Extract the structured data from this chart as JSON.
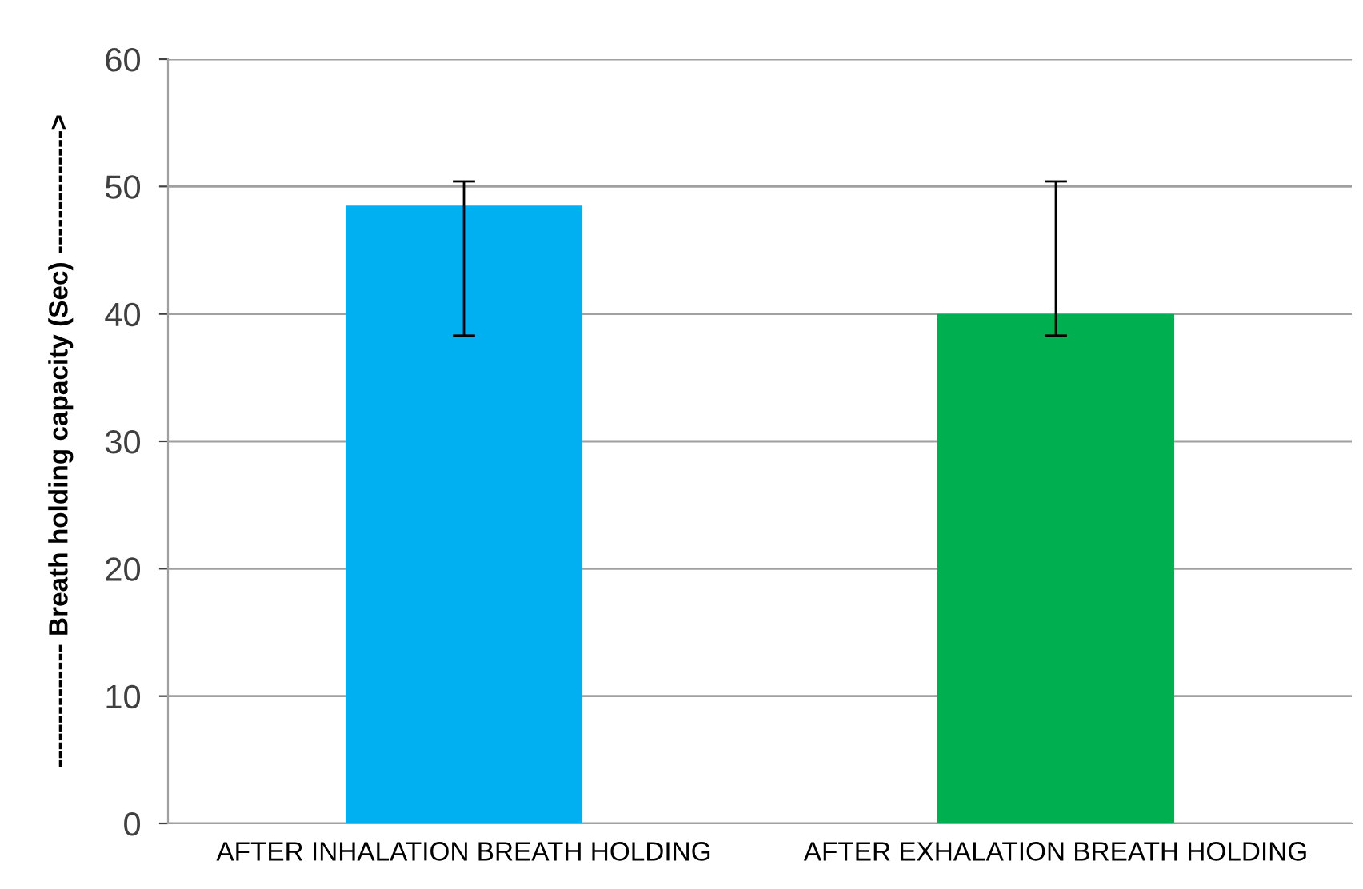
{
  "chart_data": {
    "type": "bar",
    "ylabel": "-------------- Breath holding capacity (Sec) -------------->",
    "categories": [
      "AFTER INHALATION BREATH HOLDING",
      "AFTER EXHALATION BREATH HOLDING"
    ],
    "values": [
      48.5,
      40.0
    ],
    "colors": [
      "#00b0f0",
      "#00b050"
    ],
    "errors": [
      [
        38.3,
        50.4
      ],
      [
        38.3,
        50.4
      ]
    ],
    "ylim": [
      0,
      60
    ],
    "yticks": [
      0,
      10,
      20,
      30,
      40,
      50,
      60
    ],
    "grid": "y"
  }
}
